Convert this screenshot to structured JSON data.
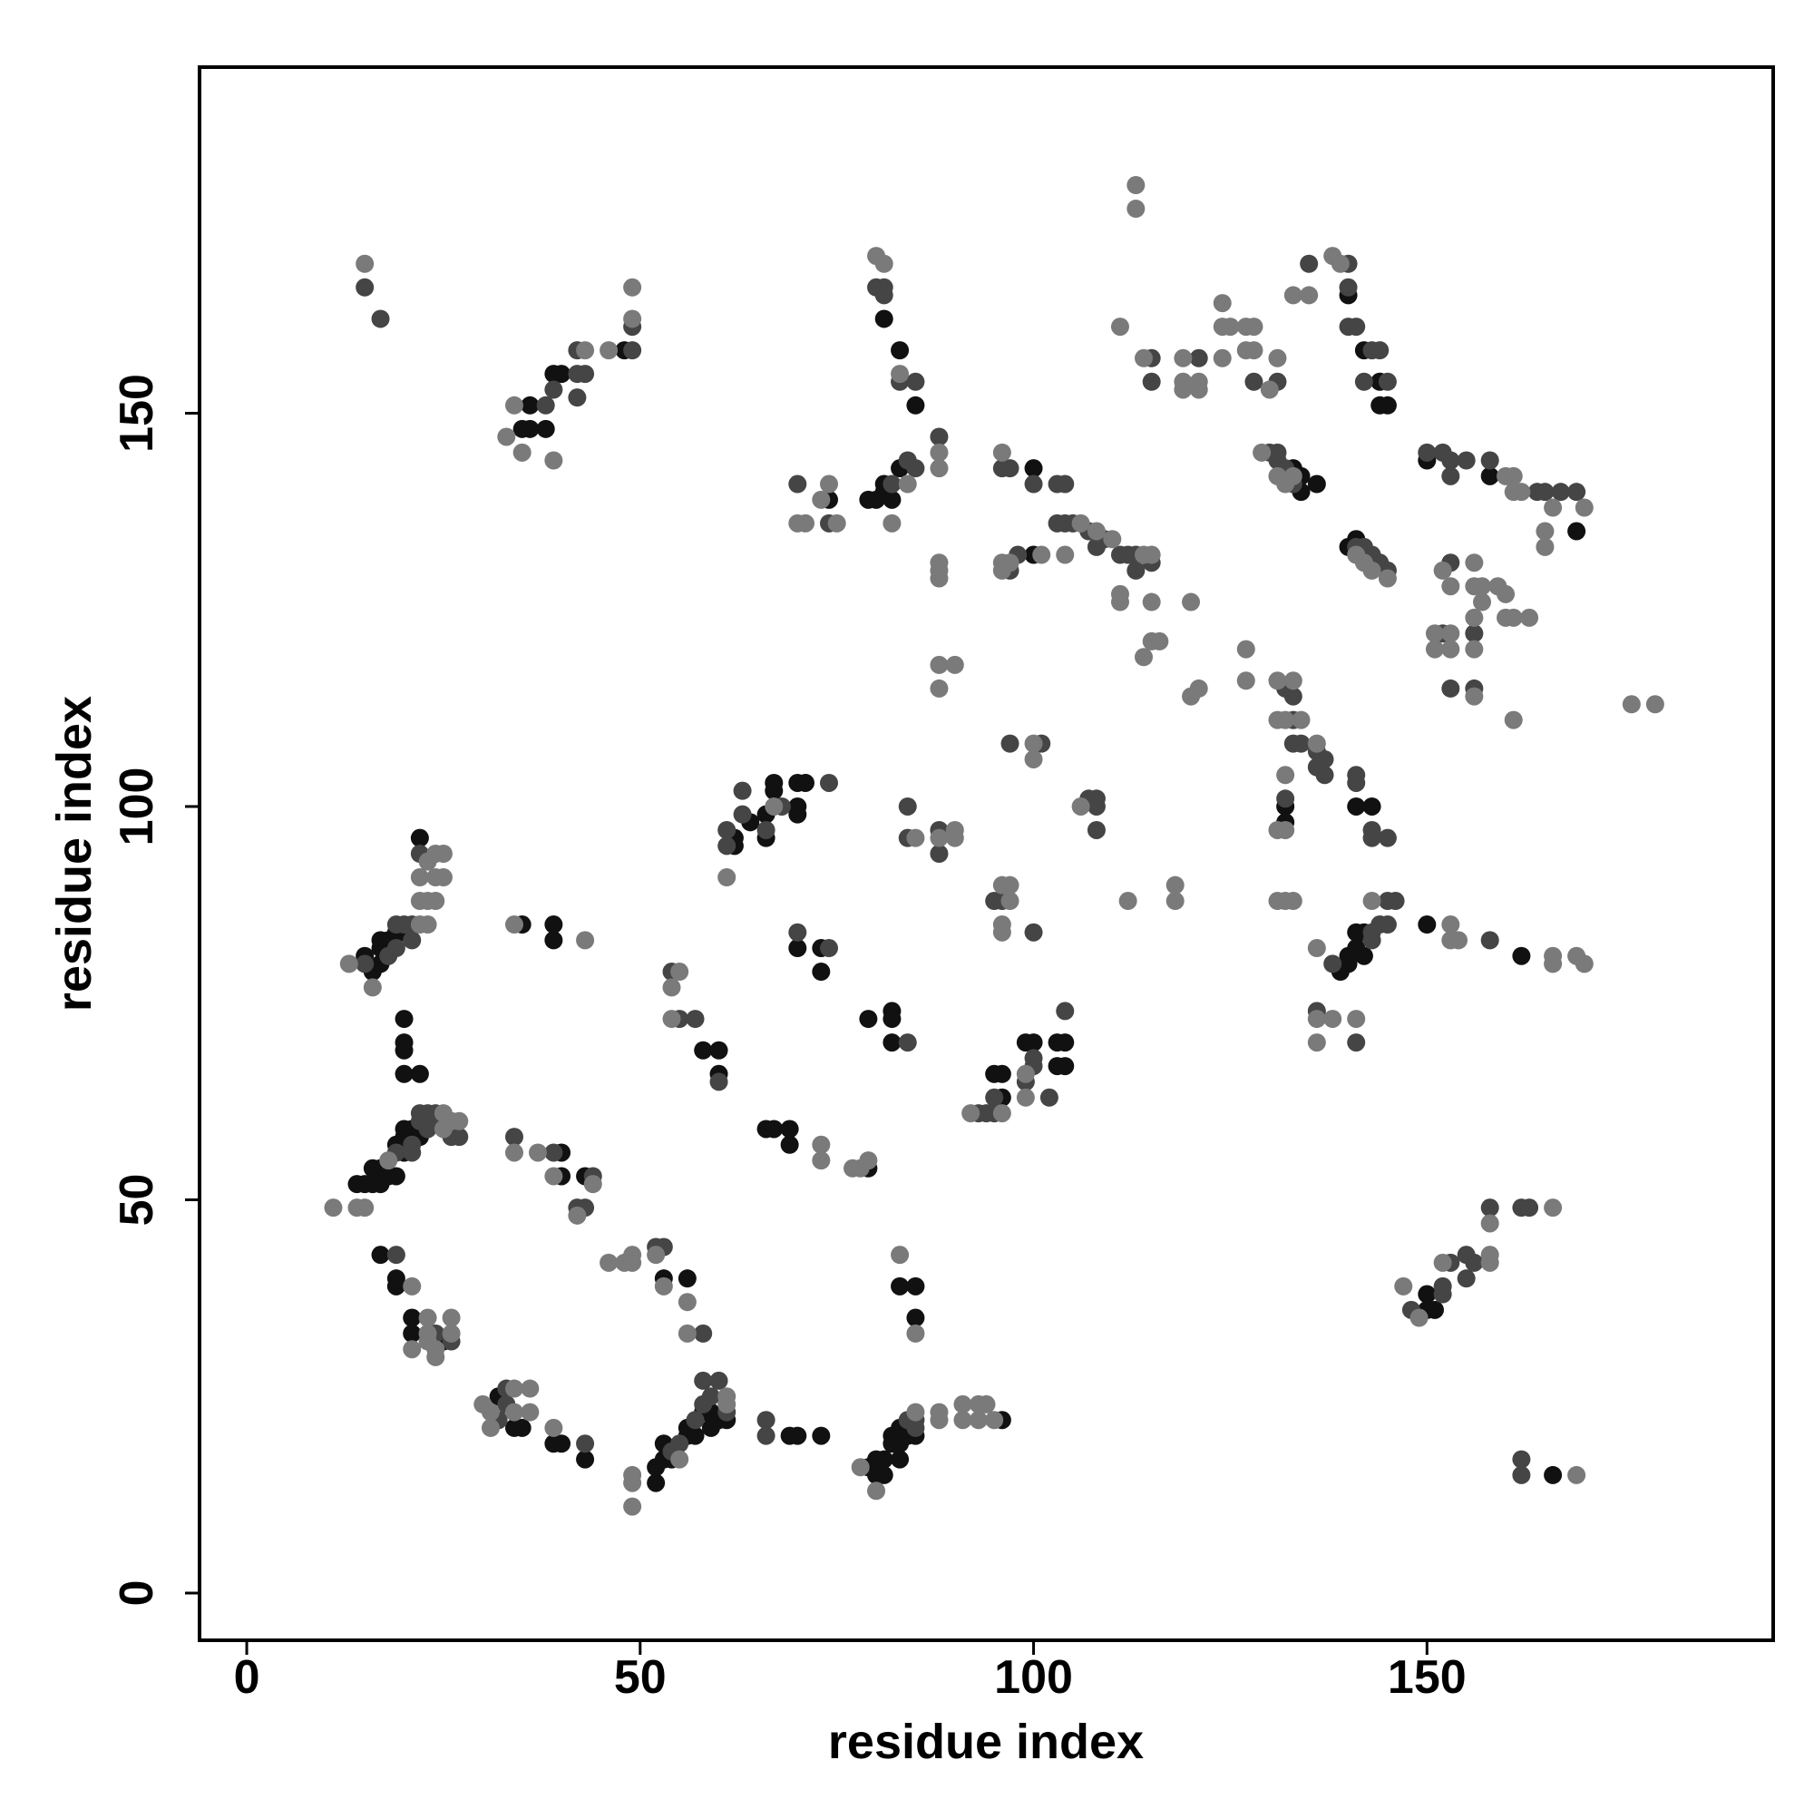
{
  "chart_data": {
    "type": "scatter",
    "xlabel": "residue index",
    "ylabel": "residue index",
    "xlim": [
      -6,
      194
    ],
    "ylim": [
      -6,
      194
    ],
    "xticks": [
      0,
      50,
      100,
      150
    ],
    "yticks": [
      0,
      50,
      100,
      150
    ],
    "series": [
      {
        "color": "#111111",
        "x": [
          35,
          36,
          36,
          38,
          39,
          40,
          48,
          81,
          83,
          85,
          79,
          80,
          81,
          81,
          82,
          83,
          74,
          100,
          100,
          140,
          142,
          144,
          144,
          145,
          134,
          134,
          136,
          133,
          140,
          141,
          150,
          158,
          169,
          132,
          132,
          141,
          143,
          142,
          141,
          141,
          140,
          140,
          139,
          142,
          150,
          162,
          150,
          150,
          151,
          166,
          96,
          95,
          96,
          99,
          100,
          103,
          104,
          103,
          104,
          62,
          62,
          64,
          66,
          66,
          67,
          67,
          70,
          70,
          70,
          71,
          70,
          73,
          73,
          79,
          82,
          82,
          82,
          58,
          60,
          60,
          66,
          67,
          69,
          69,
          79,
          35,
          39,
          39,
          40,
          40,
          43,
          15,
          16,
          17,
          17,
          17,
          18,
          19,
          20,
          22,
          20,
          20,
          20,
          20,
          22,
          14,
          15,
          16,
          16,
          17,
          17,
          18,
          19,
          19,
          20,
          20,
          20,
          21,
          22,
          17,
          19,
          19,
          21,
          21,
          25,
          32,
          34,
          35,
          39,
          40,
          43,
          53,
          56,
          52,
          52,
          53,
          53,
          54,
          56,
          56,
          57,
          58,
          59,
          59,
          60,
          61,
          69,
          70,
          73,
          79,
          80,
          80,
          81,
          81,
          82,
          82,
          83,
          83,
          83,
          84,
          85,
          96,
          83,
          85,
          85
        ],
        "values": [
          148,
          151,
          148,
          148,
          155,
          155,
          158,
          162,
          158,
          151,
          139,
          139,
          140,
          141,
          139,
          143,
          139,
          143,
          132,
          165,
          158,
          154,
          151,
          151,
          140,
          142,
          141,
          143,
          133,
          134,
          144,
          142,
          135,
          100,
          98,
          100,
          100,
          84,
          84,
          82,
          81,
          80,
          79,
          81,
          85,
          81,
          36,
          38,
          36,
          15,
          63,
          66,
          66,
          70,
          70,
          67,
          67,
          70,
          70,
          96,
          95,
          98,
          99,
          96,
          102,
          103,
          100,
          99,
          103,
          103,
          82,
          82,
          79,
          73,
          74,
          73,
          70,
          69,
          69,
          66,
          59,
          59,
          59,
          57,
          54,
          85,
          85,
          83,
          56,
          53,
          53,
          81,
          79,
          80,
          82,
          83,
          83,
          84,
          84,
          96,
          73,
          70,
          69,
          66,
          66,
          52,
          52,
          52,
          54,
          52,
          54,
          53,
          53,
          57,
          56,
          58,
          59,
          59,
          58,
          43,
          40,
          39,
          35,
          33,
          32,
          25,
          21,
          21,
          19,
          19,
          17,
          40,
          40,
          14,
          16,
          17,
          19,
          17,
          20,
          21,
          20,
          23,
          21,
          23,
          22,
          22,
          20,
          20,
          20,
          16,
          17,
          15,
          17,
          15,
          19,
          20,
          17,
          19,
          21,
          20,
          20,
          22,
          39,
          39,
          35
        ]
      },
      {
        "color": "#454545",
        "x": [
          15,
          17,
          38,
          39,
          42,
          42,
          43,
          42,
          49,
          49,
          80,
          81,
          81,
          83,
          85,
          82,
          84,
          85,
          88,
          70,
          74,
          96,
          97,
          100,
          103,
          104,
          103,
          104,
          105,
          107,
          109,
          108,
          111,
          112,
          113,
          115,
          113,
          97,
          98,
          115,
          115,
          121,
          128,
          131,
          135,
          140,
          140,
          140,
          141,
          143,
          144,
          142,
          145,
          130,
          131,
          131,
          132,
          133,
          141,
          142,
          143,
          144,
          145,
          150,
          152,
          153,
          153,
          155,
          158,
          164,
          165,
          167,
          169,
          153,
          152,
          156,
          153,
          156,
          132,
          133,
          133,
          133,
          134,
          136,
          137,
          137,
          136,
          132,
          141,
          141,
          143,
          143,
          145,
          145,
          146,
          144,
          145,
          143,
          138,
          143,
          136,
          141,
          158,
          148,
          152,
          152,
          153,
          155,
          155,
          156,
          158,
          162,
          163,
          162,
          162,
          97,
          101,
          107,
          108,
          108,
          108,
          84,
          84,
          88,
          88,
          95,
          96,
          100,
          93,
          94,
          95,
          95,
          99,
          100,
          100,
          102,
          104,
          61,
          61,
          63,
          63,
          66,
          68,
          74,
          70,
          74,
          84,
          54,
          55,
          57,
          60,
          34,
          39,
          42,
          43,
          44,
          15,
          18,
          19,
          19,
          20,
          21,
          21,
          22,
          19,
          21,
          21,
          22,
          22,
          23,
          23,
          24,
          24,
          26,
          27,
          19,
          24,
          26,
          32,
          33,
          33,
          43,
          52,
          53,
          58,
          54,
          55,
          57,
          58,
          58,
          59,
          60,
          61,
          66,
          66,
          84,
          85,
          85
        ],
        "values": [
          166,
          162,
          151,
          153,
          152,
          155,
          155,
          158,
          158,
          161,
          166,
          166,
          165,
          154,
          154,
          141,
          144,
          143,
          147,
          141,
          136,
          143,
          143,
          141,
          141,
          141,
          136,
          136,
          136,
          135,
          134,
          133,
          132,
          132,
          132,
          131,
          130,
          130,
          132,
          157,
          154,
          157,
          154,
          154,
          169,
          169,
          166,
          161,
          161,
          158,
          158,
          154,
          154,
          145,
          145,
          144,
          143,
          141,
          133,
          133,
          132,
          131,
          130,
          145,
          145,
          144,
          142,
          144,
          144,
          140,
          140,
          140,
          140,
          131,
          122,
          122,
          115,
          115,
          115,
          114,
          111,
          108,
          108,
          107,
          106,
          104,
          105,
          101,
          104,
          103,
          97,
          96,
          96,
          88,
          88,
          85,
          85,
          84,
          80,
          83,
          74,
          70,
          83,
          36,
          38,
          39,
          42,
          40,
          43,
          42,
          49,
          49,
          49,
          17,
          15,
          108,
          108,
          101,
          101,
          97,
          100,
          100,
          96,
          97,
          94,
          88,
          88,
          84,
          61,
          61,
          61,
          63,
          65,
          67,
          68,
          63,
          74,
          95,
          97,
          99,
          102,
          97,
          100,
          103,
          84,
          82,
          70,
          79,
          73,
          73,
          65,
          58,
          56,
          49,
          49,
          53,
          80,
          81,
          82,
          85,
          85,
          83,
          85,
          94,
          56,
          56,
          57,
          60,
          61,
          59,
          61,
          61,
          60,
          58,
          58,
          43,
          33,
          32,
          22,
          26,
          24,
          19,
          44,
          44,
          33,
          18,
          19,
          22,
          24,
          27,
          25,
          27,
          23,
          22,
          20,
          22,
          21,
          22
        ]
      },
      {
        "color": "#7a7a7a",
        "x": [
          15,
          33,
          34,
          35,
          39,
          43,
          46,
          49,
          49,
          80,
          81,
          83,
          84,
          82,
          88,
          88,
          70,
          71,
          73,
          74,
          75,
          96,
          106,
          108,
          110,
          114,
          115,
          111,
          111,
          115,
          115,
          116,
          114,
          120,
          104,
          96,
          96,
          97,
          101,
          88,
          88,
          88,
          88,
          90,
          88,
          113,
          113,
          111,
          114,
          119,
          119,
          119,
          121,
          121,
          124,
          124,
          125,
          124,
          127,
          128,
          127,
          128,
          130,
          131,
          133,
          135,
          138,
          139,
          129,
          133,
          131,
          132,
          142,
          145,
          143,
          141,
          160,
          161,
          161,
          162,
          166,
          170,
          165,
          165,
          152,
          153,
          156,
          156,
          157,
          157,
          159,
          160,
          161,
          160,
          163,
          156,
          151,
          153,
          151,
          153,
          156,
          156,
          161,
          176,
          179,
          127,
          127,
          131,
          133,
          131,
          132,
          134,
          136,
          132,
          132,
          131,
          131,
          132,
          133,
          121,
          120,
          143,
          136,
          136,
          138,
          141,
          136,
          153,
          153,
          154,
          166,
          166,
          169,
          170,
          147,
          149,
          152,
          158,
          158,
          158,
          166,
          169,
          100,
          100,
          106,
          85,
          88,
          90,
          90,
          96,
          97,
          97,
          96,
          96,
          118,
          118,
          112,
          92,
          96,
          99,
          99,
          61,
          67,
          54,
          55,
          54,
          73,
          73,
          77,
          78,
          79,
          34,
          43,
          34,
          37,
          39,
          42,
          44,
          13,
          16,
          22,
          23,
          23,
          22,
          24,
          22,
          24,
          23,
          24,
          25,
          25,
          11,
          14,
          15,
          18,
          25,
          25,
          26,
          27,
          21,
          21,
          23,
          23,
          23,
          24,
          24,
          26,
          26,
          30,
          31,
          31,
          34,
          34,
          36,
          36,
          39,
          46,
          48,
          49,
          49,
          52,
          53,
          56,
          56,
          49,
          49,
          49,
          55,
          61,
          61,
          78,
          80,
          85,
          88,
          88,
          91,
          91,
          93,
          93,
          94,
          95,
          83,
          85
        ],
        "values": [
          169,
          147,
          151,
          145,
          144,
          158,
          158,
          162,
          166,
          170,
          169,
          155,
          141,
          136,
          145,
          143,
          136,
          136,
          139,
          141,
          136,
          145,
          136,
          135,
          134,
          132,
          132,
          127,
          126,
          126,
          121,
          121,
          119,
          126,
          132,
          131,
          130,
          131,
          132,
          131,
          130,
          129,
          118,
          118,
          115,
          179,
          176,
          161,
          157,
          157,
          154,
          153,
          153,
          154,
          164,
          161,
          161,
          157,
          161,
          161,
          158,
          158,
          153,
          157,
          165,
          165,
          170,
          169,
          145,
          142,
          142,
          141,
          131,
          129,
          130,
          132,
          142,
          142,
          140,
          140,
          138,
          138,
          135,
          133,
          130,
          128,
          131,
          128,
          128,
          126,
          128,
          127,
          124,
          124,
          124,
          124,
          122,
          122,
          120,
          120,
          120,
          114,
          111,
          113,
          113,
          120,
          116,
          116,
          116,
          111,
          111,
          111,
          108,
          104,
          97,
          97,
          88,
          88,
          88,
          115,
          114,
          88,
          82,
          73,
          73,
          73,
          70,
          85,
          83,
          83,
          81,
          80,
          81,
          80,
          39,
          35,
          42,
          42,
          43,
          47,
          49,
          15,
          108,
          106,
          100,
          96,
          96,
          97,
          96,
          90,
          90,
          88,
          85,
          84,
          90,
          88,
          88,
          61,
          61,
          63,
          66,
          91,
          100,
          77,
          79,
          73,
          57,
          55,
          54,
          54,
          55,
          85,
          83,
          56,
          56,
          53,
          48,
          52,
          80,
          77,
          85,
          85,
          88,
          88,
          88,
          91,
          91,
          93,
          94,
          94,
          91,
          49,
          49,
          49,
          55,
          61,
          59,
          60,
          60,
          39,
          31,
          33,
          35,
          32,
          31,
          30,
          35,
          33,
          24,
          23,
          21,
          26,
          23,
          26,
          23,
          21,
          42,
          42,
          43,
          42,
          43,
          39,
          37,
          33,
          15,
          14,
          11,
          17,
          25,
          24,
          16,
          13,
          23,
          23,
          22,
          24,
          22,
          24,
          22,
          24,
          22,
          43,
          33
        ]
      }
    ]
  }
}
